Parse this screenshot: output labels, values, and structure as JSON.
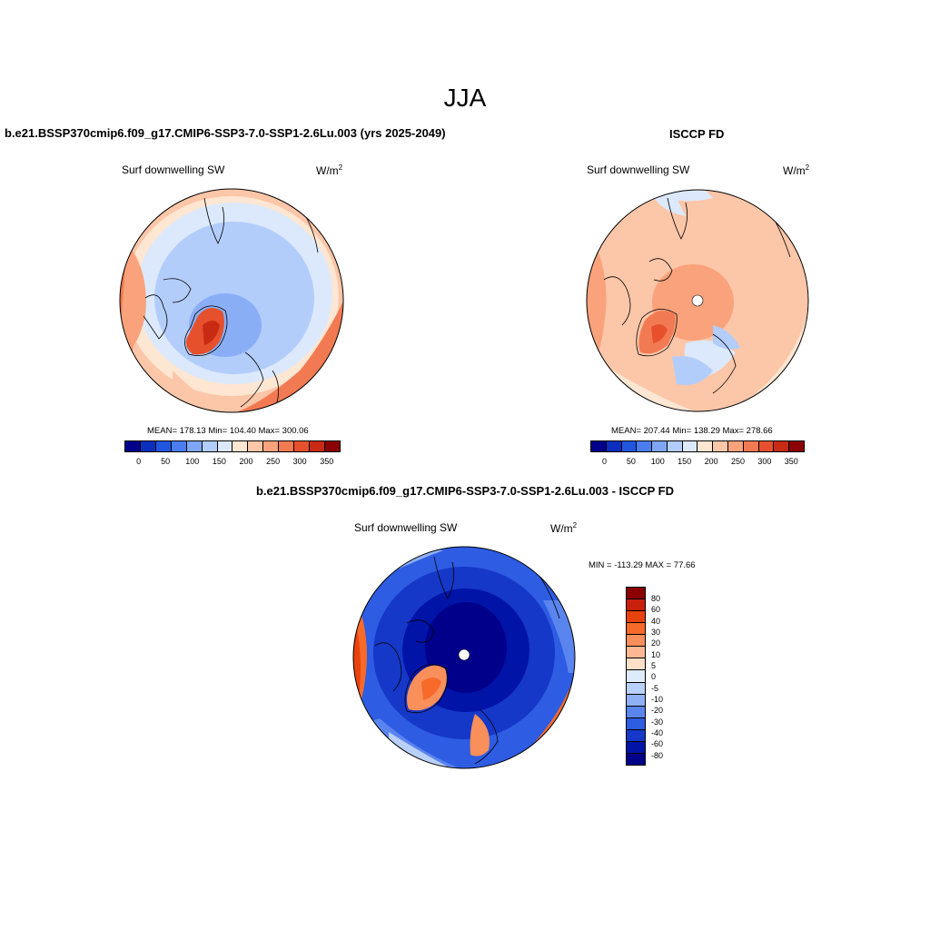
{
  "season_title": "JJA",
  "panels": [
    {
      "title": "b.e21.BSSP370cmip6.f09_g17.CMIP6-SSP3-7.0-SSP1-2.6Lu.003 (yrs 2025-2049)",
      "variable": "Surf downwelling SW",
      "units": "W/m",
      "units_exp": "2",
      "stats": "MEAN= 178.13  Min= 104.40  Max= 300.06",
      "colorbar_ticks": [
        "0",
        "50",
        "100",
        "150",
        "200",
        "250",
        "300",
        "350"
      ]
    },
    {
      "title": "ISCCP FD",
      "variable": "Surf downwelling SW",
      "units": "W/m",
      "units_exp": "2",
      "stats": "MEAN= 207.44  Min= 138.29  Max= 278.66",
      "colorbar_ticks": [
        "0",
        "50",
        "100",
        "150",
        "200",
        "250",
        "300",
        "350"
      ]
    },
    {
      "title": "b.e21.BSSP370cmip6.f09_g17.CMIP6-SSP3-7.0-SSP1-2.6Lu.003 - ISCCP FD",
      "variable": "Surf downwelling SW",
      "units": "W/m",
      "units_exp": "2",
      "stats": "MIN = -113.29 MAX =  77.66",
      "colorbar_ticks": [
        "80",
        "60",
        "40",
        "30",
        "20",
        "10",
        "5",
        "0",
        "-5",
        "-10",
        "-20",
        "-30",
        "-40",
        "-60",
        "-80"
      ]
    }
  ],
  "colors": {
    "abs_scale": [
      "#00008b",
      "#0a2fbf",
      "#2156e0",
      "#4a7ef0",
      "#7fa6f5",
      "#b3cdfb",
      "#dce9fc",
      "#fde6d2",
      "#fcc6a8",
      "#f9a27c",
      "#f27a52",
      "#e6502d",
      "#c82a14",
      "#8b0000"
    ],
    "diff_scale": [
      "#8b0000",
      "#c8200a",
      "#e8420f",
      "#f76a2a",
      "#f98f5a",
      "#fcb892",
      "#fde0c8",
      "#deebfb",
      "#b9d0fa",
      "#8fb0f5",
      "#5a84ee",
      "#2e5ce3",
      "#1538c8",
      "#0014a8",
      "#00008b"
    ]
  }
}
